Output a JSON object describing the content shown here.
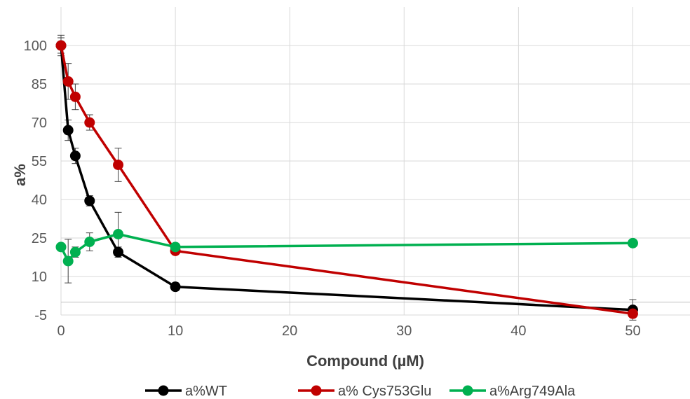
{
  "chart_data": {
    "type": "line",
    "xlabel": "Compound (µM)",
    "ylabel": "a%",
    "xlim": [
      0,
      55
    ],
    "ylim": [
      -5,
      115
    ],
    "x_ticks": [
      0,
      10,
      20,
      30,
      40,
      50
    ],
    "y_ticks": [
      -5,
      10,
      25,
      40,
      55,
      70,
      85,
      100
    ],
    "grid": true,
    "legend_position": "bottom",
    "series": [
      {
        "name": "a%WT",
        "color": "#000000",
        "x": [
          0,
          0.625,
          1.25,
          2.5,
          5,
          10,
          50
        ],
        "y": [
          100,
          67,
          57,
          39.5,
          19.5,
          6,
          -3
        ],
        "err": [
          4,
          4,
          3,
          2,
          2,
          1.5,
          4
        ]
      },
      {
        "name": "a% Cys753Glu",
        "color": "#C00000",
        "x": [
          0,
          0.625,
          1.25,
          2.5,
          5,
          10,
          50
        ],
        "y": [
          100,
          86,
          80,
          70,
          53.5,
          20,
          -4.5
        ],
        "err": [
          3,
          7,
          5,
          3,
          6.5,
          1,
          1
        ]
      },
      {
        "name": "a%Arg749Ala",
        "color": "#00B050",
        "x": [
          0,
          0.625,
          1.25,
          2.5,
          5,
          10,
          50
        ],
        "y": [
          21.5,
          16,
          19.5,
          23.5,
          26.5,
          21.5,
          23
        ],
        "err": [
          0,
          8.5,
          2,
          3.5,
          8.5,
          1,
          0
        ]
      }
    ]
  }
}
